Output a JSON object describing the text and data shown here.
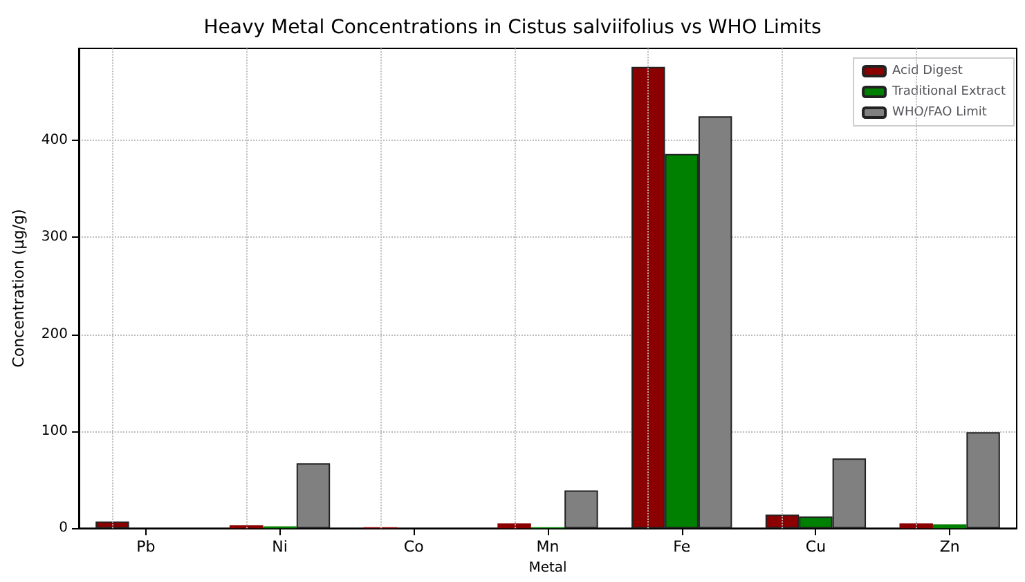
{
  "chart_data": {
    "type": "bar",
    "title": "Heavy Metal Concentrations in Cistus salviifolius vs WHO Limits",
    "xlabel": "Metal",
    "ylabel": "Concentration (µg/g)",
    "categories": [
      "Pb",
      "Ni",
      "Co",
      "Mn",
      "Fe",
      "Cu",
      "Zn"
    ],
    "series": [
      {
        "name": "Acid Digest",
        "color": "#8b0000",
        "values": [
          7,
          3,
          1,
          5,
          476,
          14,
          5
        ]
      },
      {
        "name": "Traditional Extract",
        "color": "#008000",
        "values": [
          null,
          2,
          null,
          1,
          386,
          12,
          4
        ]
      },
      {
        "name": "WHO/FAO Limit",
        "color": "#808080",
        "values": [
          null,
          67,
          null,
          39,
          425,
          72,
          99
        ]
      }
    ],
    "ylim": [
      0,
      495
    ],
    "yticks": [
      0,
      100,
      200,
      300,
      400
    ],
    "grid": true,
    "legend": "top right"
  }
}
